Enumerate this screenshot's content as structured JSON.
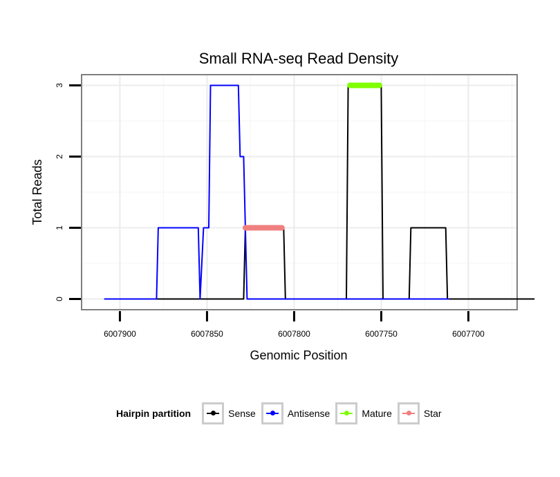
{
  "chart_data": {
    "type": "line",
    "title": "Small RNA-seq Read Density",
    "xlabel": "Genomic Position",
    "ylabel": "Total Reads",
    "xlim": [
      6007922,
      6007672
    ],
    "ylim": [
      -0.15,
      3.15
    ],
    "x_reversed": true,
    "xticks": [
      6007900,
      6007850,
      6007800,
      6007750,
      6007700
    ],
    "xtick_labels": [
      "6007900",
      "6007850",
      "6007800",
      "6007750",
      "6007700"
    ],
    "yticks": [
      0,
      1,
      2,
      3
    ],
    "ytick_labels": [
      "0",
      "1",
      "2",
      "3"
    ],
    "grid": true,
    "legend": {
      "title": "Hairpin partition",
      "position": "bottom",
      "entries": [
        "Sense",
        "Antisense",
        "Mature",
        "Star"
      ]
    },
    "series": [
      {
        "name": "Sense",
        "color": "#000000",
        "x": [
          6007909,
          6007829,
          6007828,
          6007806,
          6007805,
          6007770,
          6007769,
          6007750,
          6007749,
          6007734,
          6007733,
          6007713,
          6007712,
          6007662
        ],
        "y": [
          0,
          0,
          1,
          1,
          0,
          0,
          3,
          3,
          0,
          0,
          1,
          1,
          0,
          0
        ]
      },
      {
        "name": "Antisense",
        "color": "#0000ff",
        "x": [
          6007909,
          6007879,
          6007878,
          6007855,
          6007854,
          6007852,
          6007852,
          6007849,
          6007848,
          6007832,
          6007831,
          6007830,
          6007829,
          6007827,
          6007826,
          6007769,
          6007768,
          6007712,
          6007711
        ],
        "y": [
          0,
          0,
          1,
          1,
          0,
          1,
          1,
          1,
          3,
          3,
          2,
          2,
          2,
          0,
          0,
          0,
          0,
          0,
          0
        ]
      },
      {
        "name": "Mature",
        "color": "#7fff00",
        "x": [
          6007768,
          6007751
        ],
        "y": [
          3,
          3
        ]
      },
      {
        "name": "Star",
        "color": "#f08080",
        "x": [
          6007828,
          6007807
        ],
        "y": [
          1,
          1
        ]
      }
    ]
  }
}
